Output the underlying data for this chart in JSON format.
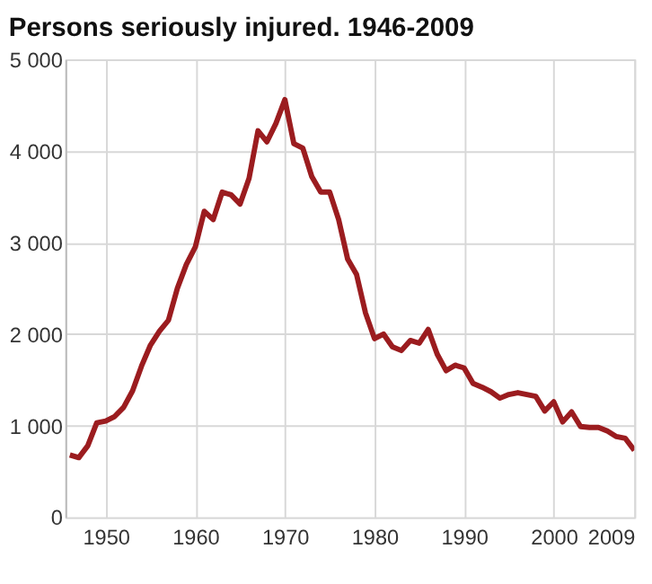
{
  "chart_data": {
    "type": "line",
    "title": "Persons seriously injured. 1946-2009",
    "x": [
      1946,
      1947,
      1948,
      1949,
      1950,
      1951,
      1952,
      1953,
      1954,
      1955,
      1956,
      1957,
      1958,
      1959,
      1960,
      1961,
      1962,
      1963,
      1964,
      1965,
      1966,
      1967,
      1968,
      1969,
      1970,
      1971,
      1972,
      1973,
      1974,
      1975,
      1976,
      1977,
      1978,
      1979,
      1980,
      1981,
      1982,
      1983,
      1984,
      1985,
      1986,
      1987,
      1988,
      1989,
      1990,
      1991,
      1992,
      1993,
      1994,
      1995,
      1996,
      1997,
      1998,
      1999,
      2000,
      2001,
      2002,
      2003,
      2004,
      2005,
      2006,
      2007,
      2008,
      2009
    ],
    "series": [
      {
        "color": "#9b1c1f",
        "values": [
          680,
          650,
          780,
          1030,
          1050,
          1100,
          1200,
          1380,
          1650,
          1880,
          2030,
          2150,
          2500,
          2760,
          2950,
          3340,
          3250,
          3550,
          3520,
          3420,
          3700,
          4220,
          4100,
          4300,
          4560,
          4080,
          4030,
          3720,
          3550,
          3550,
          3250,
          2820,
          2650,
          2230,
          1950,
          2000,
          1860,
          1820,
          1930,
          1900,
          2050,
          1780,
          1600,
          1660,
          1630,
          1460,
          1420,
          1370,
          1300,
          1340,
          1360,
          1340,
          1320,
          1160,
          1260,
          1040,
          1150,
          990,
          980,
          980,
          940,
          880,
          860,
          730
        ]
      }
    ],
    "xlim": [
      1945.5,
      2009
    ],
    "xticks": [
      1950,
      1960,
      1970,
      1980,
      1990,
      2000,
      2009
    ],
    "ylim": [
      0,
      5000
    ],
    "yticks": [
      0,
      {
        "value": 1000,
        "label": "1 000"
      },
      {
        "value": 2000,
        "label": "2 000"
      },
      {
        "value": 3000,
        "label": "3 000"
      },
      {
        "value": 4000,
        "label": "4 000"
      },
      {
        "value": 5000,
        "label": "5 000"
      }
    ],
    "grid": true,
    "legend": false,
    "marker": "none",
    "line_style": "solid"
  }
}
